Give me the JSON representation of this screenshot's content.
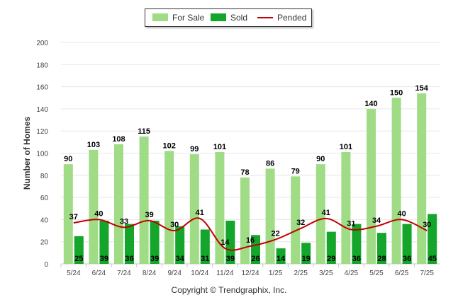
{
  "legend": {
    "for_sale": "For Sale",
    "sold": "Sold",
    "pended": "Pended"
  },
  "copyright": "Copyright © Trendgraphix, Inc.",
  "colors": {
    "for_sale": "#9fdc85",
    "sold": "#14a52b",
    "pended": "#c00000",
    "grid": "#e6e6e6"
  },
  "chart_data": {
    "type": "bar",
    "title": "",
    "xlabel": "",
    "ylabel": "Number of Homes",
    "ylim": [
      0,
      200
    ],
    "yticks": [
      0,
      20,
      40,
      60,
      80,
      100,
      120,
      140,
      160,
      180,
      200
    ],
    "grid": true,
    "legend_position": "top-center",
    "categories": [
      "5/24",
      "6/24",
      "7/24",
      "8/24",
      "9/24",
      "10/24",
      "11/24",
      "12/24",
      "1/25",
      "2/25",
      "3/25",
      "4/25",
      "5/25",
      "6/25",
      "7/25"
    ],
    "series": [
      {
        "name": "For Sale",
        "type": "bar",
        "values": [
          90,
          103,
          108,
          115,
          102,
          99,
          101,
          78,
          86,
          79,
          90,
          101,
          140,
          150,
          154
        ]
      },
      {
        "name": "Sold",
        "type": "bar",
        "values": [
          25,
          39,
          36,
          39,
          34,
          31,
          39,
          26,
          14,
          19,
          29,
          36,
          28,
          36,
          45
        ]
      },
      {
        "name": "Pended",
        "type": "line",
        "values": [
          37,
          40,
          33,
          39,
          30,
          41,
          14,
          16,
          22,
          32,
          41,
          31,
          34,
          40,
          30
        ]
      }
    ]
  }
}
